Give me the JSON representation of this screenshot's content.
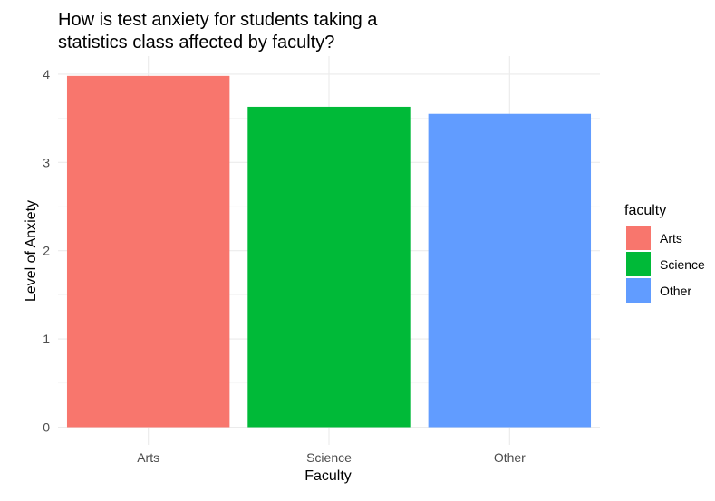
{
  "chart_data": {
    "type": "bar",
    "title_lines": [
      "How is test anxiety for students taking a",
      "statistics class affected by faculty?"
    ],
    "xlabel": "Faculty",
    "ylabel": "Level of Anxiety",
    "categories": [
      "Arts",
      "Science",
      "Other"
    ],
    "values": [
      3.98,
      3.63,
      3.55
    ],
    "colors": [
      "#F8766D",
      "#00BA38",
      "#619CFF"
    ],
    "ylim": [
      0,
      4.1
    ],
    "yticks": [
      0,
      1,
      2,
      3,
      4
    ],
    "grid": true,
    "legend": {
      "title": "faculty",
      "position": "right",
      "entries": [
        "Arts",
        "Science",
        "Other"
      ]
    }
  }
}
